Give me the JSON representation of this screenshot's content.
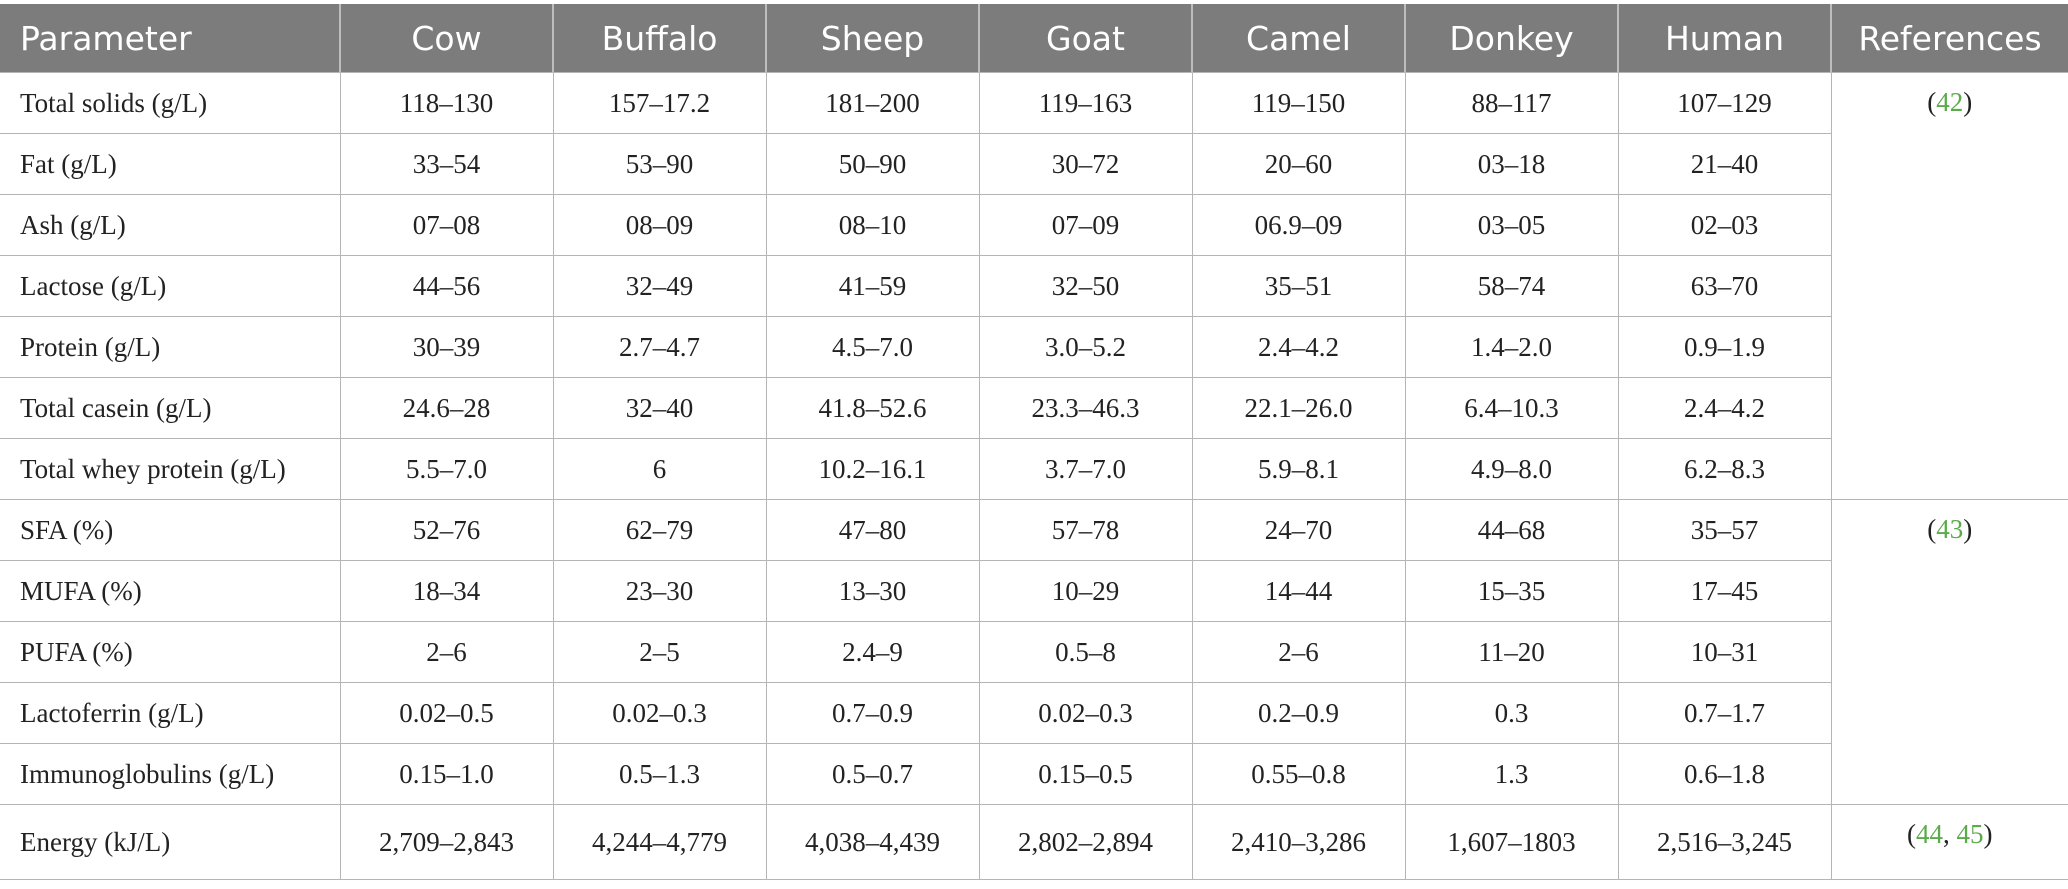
{
  "table": {
    "headers": [
      "Parameter",
      "Cow",
      "Buffalo",
      "Sheep",
      "Goat",
      "Camel",
      "Donkey",
      "Human",
      "References"
    ],
    "rows": [
      {
        "parameter": "Total solids (g/L)",
        "values": [
          "118–130",
          "157–17.2",
          "181–200",
          "119–163",
          "119–150",
          "88–117",
          "107–129"
        ]
      },
      {
        "parameter": "Fat (g/L)",
        "values": [
          "33–54",
          "53–90",
          "50–90",
          "30–72",
          "20–60",
          "03–18",
          "21–40"
        ]
      },
      {
        "parameter": "Ash (g/L)",
        "values": [
          "07–08",
          "08–09",
          "08–10",
          "07–09",
          "06.9–09",
          "03–05",
          "02–03"
        ]
      },
      {
        "parameter": "Lactose (g/L)",
        "values": [
          "44–56",
          "32–49",
          "41–59",
          "32–50",
          "35–51",
          "58–74",
          "63–70"
        ]
      },
      {
        "parameter": "Protein (g/L)",
        "values": [
          "30–39",
          "2.7–4.7",
          "4.5–7.0",
          "3.0–5.2",
          "2.4–4.2",
          "1.4–2.0",
          "0.9–1.9"
        ]
      },
      {
        "parameter": "Total casein (g/L)",
        "values": [
          "24.6–28",
          "32–40",
          "41.8–52.6",
          "23.3–46.3",
          "22.1–26.0",
          "6.4–10.3",
          "2.4–4.2"
        ]
      },
      {
        "parameter": "Total whey protein (g/L)",
        "values": [
          "5.5–7.0",
          "6",
          "10.2–16.1",
          "3.7–7.0",
          "5.9–8.1",
          "4.9–8.0",
          "6.2–8.3"
        ]
      },
      {
        "parameter": "SFA (%)",
        "values": [
          "52–76",
          "62–79",
          "47–80",
          "57–78",
          "24–70",
          "44–68",
          "35–57"
        ]
      },
      {
        "parameter": "MUFA (%)",
        "values": [
          "18–34",
          "23–30",
          "13–30",
          "10–29",
          "14–44",
          "15–35",
          "17–45"
        ]
      },
      {
        "parameter": "PUFA (%)",
        "values": [
          "2–6",
          "2–5",
          "2.4–9",
          "0.5–8",
          "2–6",
          "11–20",
          "10–31"
        ]
      },
      {
        "parameter": "Lactoferrin (g/L)",
        "values": [
          "0.02–0.5",
          "0.02–0.3",
          "0.7–0.9",
          "0.02–0.3",
          "0.2–0.9",
          "0.3",
          "0.7–1.7"
        ]
      },
      {
        "parameter": "Immunoglobulins (g/L)",
        "values": [
          "0.15–1.0",
          "0.5–1.3",
          "0.5–0.7",
          "0.15–0.5",
          "0.55–0.8",
          "1.3",
          "0.6–1.8"
        ]
      },
      {
        "parameter": "Energy (kJ/L)",
        "values": [
          "2,709–2,843",
          "4,244–4,779",
          "4,038–4,439",
          "2,802–2,894",
          "2,410–3,286",
          "1,607–1803",
          "2,516–3,245"
        ]
      }
    ],
    "references": [
      {
        "start_row": 0,
        "row_span": 7,
        "citations": [
          "42"
        ]
      },
      {
        "start_row": 7,
        "row_span": 5,
        "citations": [
          "43"
        ]
      },
      {
        "start_row": 12,
        "row_span": 1,
        "citations": [
          "44",
          "45"
        ]
      }
    ]
  }
}
